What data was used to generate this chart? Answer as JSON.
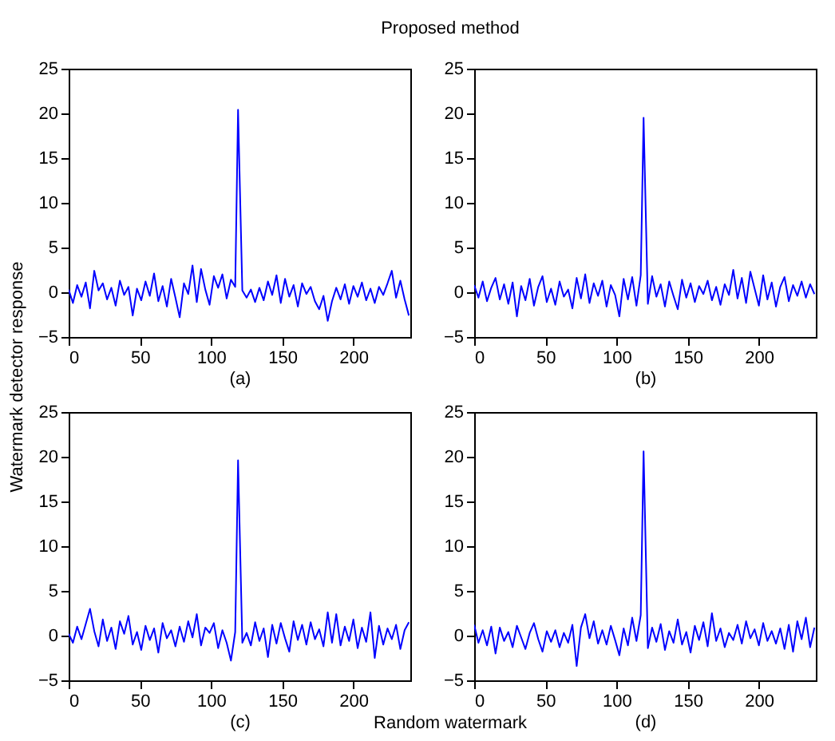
{
  "chart_data": [
    {
      "type": "line",
      "title": "Proposed method",
      "ylabel": "Watermark detector response",
      "xlabel": "(a)",
      "xlim": [
        0,
        240
      ],
      "ylim": [
        -5,
        25
      ],
      "xticks": [
        0,
        50,
        100,
        150,
        200
      ],
      "yticks": [
        -5,
        0,
        5,
        10,
        15,
        20,
        25
      ],
      "x": [
        0,
        3,
        6,
        9,
        12,
        15,
        18,
        21,
        24,
        27,
        30,
        33,
        36,
        39,
        42,
        45,
        48,
        51,
        54,
        57,
        60,
        63,
        66,
        69,
        72,
        75,
        78,
        81,
        84,
        87,
        90,
        93,
        96,
        99,
        102,
        105,
        108,
        111,
        114,
        117,
        119,
        122,
        125,
        128,
        131,
        134,
        137,
        140,
        143,
        146,
        149,
        152,
        155,
        158,
        161,
        164,
        167,
        170,
        173,
        176,
        179,
        182,
        185,
        188,
        191,
        194,
        197,
        200,
        203,
        206,
        209,
        212,
        215,
        218,
        221,
        224,
        227,
        230,
        233,
        236,
        239
      ],
      "series": [
        {
          "color": "#0000ff",
          "values": [
            0.3,
            -1.2,
            0.8,
            -0.5,
            1.1,
            -1.8,
            2.4,
            0.2,
            1.0,
            -0.8,
            0.5,
            -1.5,
            1.3,
            -0.3,
            0.6,
            -2.6,
            0.4,
            -0.9,
            1.2,
            -0.4,
            2.1,
            -1.0,
            0.7,
            -1.6,
            1.5,
            -0.6,
            -2.8,
            1.0,
            -0.2,
            3.0,
            -1.1,
            2.6,
            0.3,
            -1.4,
            1.8,
            0.5,
            2.0,
            -0.7,
            1.4,
            0.6,
            20.4,
            0.2,
            -0.6,
            0.3,
            -1.1,
            0.5,
            -0.9,
            1.2,
            -0.3,
            1.9,
            -1.2,
            1.5,
            -0.5,
            0.8,
            -1.6,
            1.0,
            -0.2,
            0.6,
            -1.0,
            -1.9,
            -0.4,
            -3.2,
            -1.0,
            0.5,
            -0.8,
            0.9,
            -1.3,
            0.7,
            -0.5,
            1.1,
            -0.9,
            0.4,
            -1.2,
            0.6,
            -0.3,
            1.0,
            2.4,
            -0.6,
            1.3,
            -0.8,
            -2.6
          ]
        }
      ]
    },
    {
      "type": "line",
      "xlabel": "(b)",
      "xlim": [
        0,
        240
      ],
      "ylim": [
        -5,
        25
      ],
      "xticks": [
        0,
        50,
        100,
        150,
        200
      ],
      "yticks": [
        -5,
        0,
        5,
        10,
        15,
        20,
        25
      ],
      "x": [
        0,
        3,
        6,
        9,
        12,
        15,
        18,
        21,
        24,
        27,
        30,
        33,
        36,
        39,
        42,
        45,
        48,
        51,
        54,
        57,
        60,
        63,
        66,
        69,
        72,
        75,
        78,
        81,
        84,
        87,
        90,
        93,
        96,
        99,
        102,
        105,
        108,
        111,
        114,
        117,
        119,
        122,
        125,
        128,
        131,
        134,
        137,
        140,
        143,
        146,
        149,
        152,
        155,
        158,
        161,
        164,
        167,
        170,
        173,
        176,
        179,
        182,
        185,
        188,
        191,
        194,
        197,
        200,
        203,
        206,
        209,
        212,
        215,
        218,
        221,
        224,
        227,
        230,
        233,
        236,
        239
      ],
      "series": [
        {
          "color": "#0000ff",
          "values": [
            0.8,
            -0.6,
            1.2,
            -1.0,
            0.5,
            1.6,
            -0.8,
            0.9,
            -1.3,
            1.1,
            -2.7,
            0.7,
            -0.9,
            1.5,
            -1.5,
            0.6,
            1.8,
            -1.1,
            0.4,
            -1.4,
            1.2,
            -0.5,
            0.3,
            -1.8,
            1.6,
            -0.7,
            2.0,
            -1.2,
            1.0,
            -0.4,
            1.3,
            -1.6,
            0.8,
            -0.3,
            -2.7,
            1.5,
            -0.8,
            1.7,
            -1.5,
            1.9,
            19.5,
            -1.3,
            1.8,
            -0.5,
            0.9,
            -1.6,
            1.2,
            -0.4,
            -1.9,
            1.4,
            -0.6,
            1.0,
            -1.1,
            0.7,
            -0.2,
            1.3,
            -0.9,
            0.6,
            -1.4,
            0.9,
            -0.3,
            2.5,
            -0.7,
            1.6,
            -1.2,
            2.3,
            0.4,
            -1.5,
            1.9,
            -0.8,
            1.1,
            -1.6,
            0.6,
            1.7,
            -1.0,
            0.8,
            -0.4,
            1.2,
            -0.6,
            0.9,
            -0.2
          ]
        }
      ]
    },
    {
      "type": "line",
      "xlabel": "(c)",
      "annotations": [
        "Random watermark"
      ],
      "xlim": [
        0,
        240
      ],
      "ylim": [
        -5,
        25
      ],
      "xticks": [
        0,
        50,
        100,
        150,
        200
      ],
      "yticks": [
        -5,
        0,
        5,
        10,
        15,
        20,
        25
      ],
      "x": [
        0,
        3,
        6,
        9,
        12,
        15,
        18,
        21,
        24,
        27,
        30,
        33,
        36,
        39,
        42,
        45,
        48,
        51,
        54,
        57,
        60,
        63,
        66,
        69,
        72,
        75,
        78,
        81,
        84,
        87,
        90,
        93,
        96,
        99,
        102,
        105,
        108,
        111,
        114,
        117,
        119,
        122,
        125,
        128,
        131,
        134,
        137,
        140,
        143,
        146,
        149,
        152,
        155,
        158,
        161,
        164,
        167,
        170,
        173,
        176,
        179,
        182,
        185,
        188,
        191,
        194,
        197,
        200,
        203,
        206,
        209,
        212,
        215,
        218,
        221,
        224,
        227,
        230,
        233,
        236,
        239
      ],
      "series": [
        {
          "color": "#0000ff",
          "values": [
            0.2,
            -0.8,
            1.0,
            -0.4,
            1.3,
            3.0,
            0.5,
            -1.2,
            1.8,
            -0.6,
            0.9,
            -1.5,
            1.6,
            0.2,
            2.2,
            -1.0,
            0.4,
            -1.6,
            1.1,
            -0.5,
            0.8,
            -1.9,
            1.4,
            -0.3,
            0.6,
            -1.2,
            1.0,
            -0.7,
            1.6,
            -0.2,
            2.4,
            -1.1,
            0.9,
            0.3,
            1.4,
            -1.4,
            0.6,
            -0.8,
            -2.8,
            0.4,
            19.6,
            -0.8,
            0.3,
            -1.1,
            1.5,
            -0.6,
            0.8,
            -2.4,
            1.2,
            -0.9,
            1.4,
            -0.3,
            -1.8,
            1.6,
            -0.5,
            1.2,
            -1.0,
            1.5,
            -0.4,
            0.7,
            -1.2,
            2.6,
            -0.8,
            2.4,
            -1.1,
            1.0,
            -0.6,
            1.8,
            -1.4,
            0.9,
            -0.7,
            2.6,
            -2.5,
            1.1,
            -1.0,
            0.8,
            -0.4,
            1.2,
            -1.5,
            0.6,
            1.5
          ]
        }
      ]
    },
    {
      "type": "line",
      "xlabel": "(d)",
      "xlim": [
        0,
        240
      ],
      "ylim": [
        -5,
        25
      ],
      "xticks": [
        0,
        50,
        100,
        150,
        200
      ],
      "yticks": [
        -5,
        0,
        5,
        10,
        15,
        20,
        25
      ],
      "x": [
        0,
        3,
        6,
        9,
        12,
        15,
        18,
        21,
        24,
        27,
        30,
        33,
        36,
        39,
        42,
        45,
        48,
        51,
        54,
        57,
        60,
        63,
        66,
        69,
        72,
        75,
        78,
        81,
        84,
        87,
        90,
        93,
        96,
        99,
        102,
        105,
        108,
        111,
        114,
        117,
        119,
        122,
        125,
        128,
        131,
        134,
        137,
        140,
        143,
        146,
        149,
        152,
        155,
        158,
        161,
        164,
        167,
        170,
        173,
        176,
        179,
        182,
        185,
        188,
        191,
        194,
        197,
        200,
        203,
        206,
        209,
        212,
        215,
        218,
        221,
        224,
        227,
        230,
        233,
        236,
        239
      ],
      "series": [
        {
          "color": "#0000ff",
          "values": [
            1.2,
            -0.8,
            0.6,
            -1.1,
            1.0,
            -2.0,
            0.9,
            -0.6,
            0.4,
            -1.3,
            1.1,
            -0.2,
            -1.5,
            0.3,
            1.4,
            -0.4,
            -1.8,
            0.5,
            -0.7,
            0.6,
            -1.3,
            0.3,
            -0.8,
            1.2,
            -3.4,
            0.9,
            2.4,
            -0.3,
            1.6,
            -0.9,
            0.6,
            -1.0,
            1.1,
            -0.5,
            -2.2,
            0.8,
            -1.1,
            2.0,
            -0.6,
            2.3,
            20.6,
            -1.4,
            0.9,
            -0.7,
            1.3,
            -1.6,
            0.5,
            -0.8,
            1.8,
            -1.0,
            0.4,
            -1.9,
            1.1,
            -0.5,
            1.5,
            -1.2,
            2.5,
            -0.6,
            0.8,
            -1.3,
            0.3,
            -0.5,
            1.2,
            -0.9,
            1.6,
            -0.3,
            0.7,
            -1.1,
            1.4,
            -0.6,
            0.5,
            -0.9,
            0.8,
            -1.5,
            1.2,
            -1.8,
            1.6,
            -0.4,
            2.0,
            -1.3,
            0.9
          ]
        }
      ]
    }
  ]
}
